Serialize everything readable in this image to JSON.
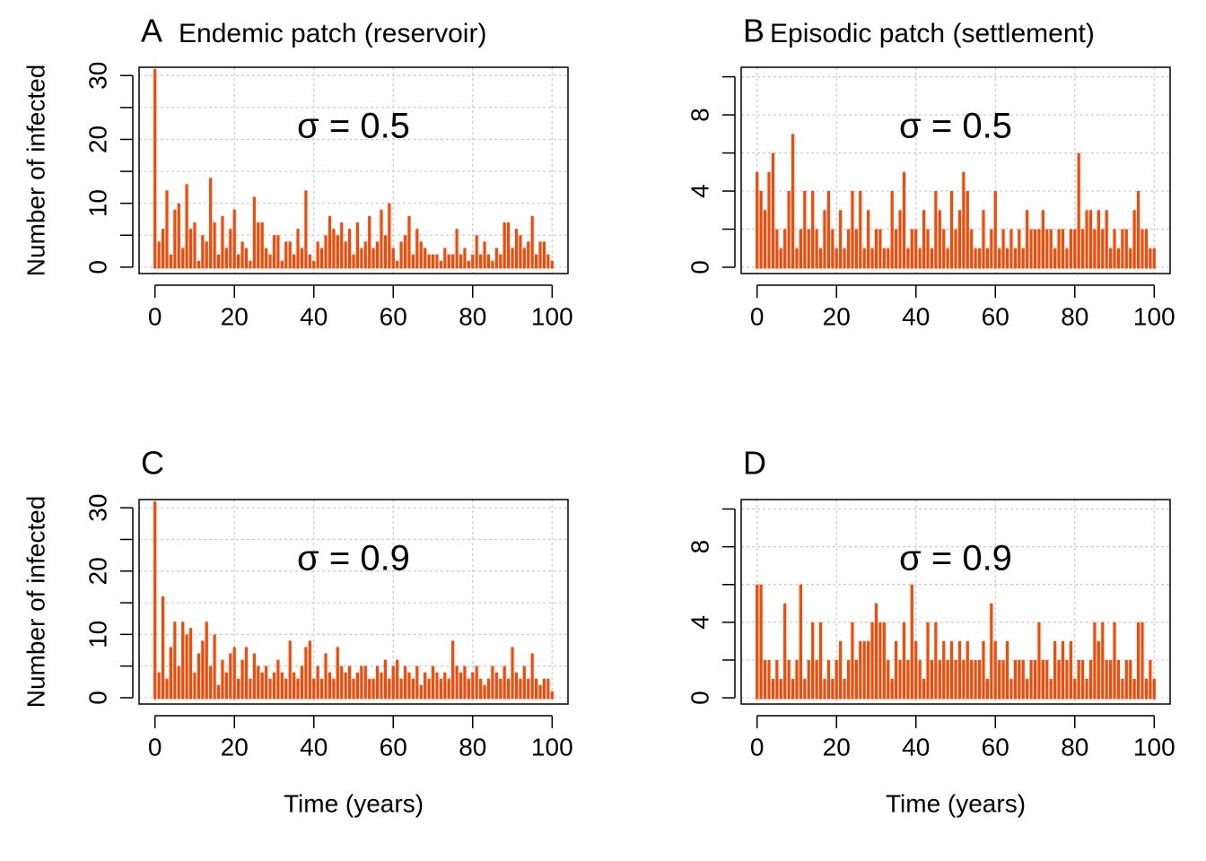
{
  "chart_data": [
    {
      "type": "spike",
      "label": "A",
      "title": "Endemic patch (reservoir)",
      "annotation": "σ = 0.5",
      "y_label": "Number of infected",
      "x": [
        0,
        1,
        2,
        3,
        4,
        5,
        6,
        7,
        8,
        9,
        10,
        11,
        12,
        13,
        14,
        15,
        16,
        17,
        18,
        19,
        20,
        21,
        22,
        23,
        24,
        25,
        26,
        27,
        28,
        29,
        30,
        31,
        32,
        33,
        34,
        35,
        36,
        37,
        38,
        39,
        40,
        41,
        42,
        43,
        44,
        45,
        46,
        47,
        48,
        49,
        50,
        51,
        52,
        53,
        54,
        55,
        56,
        57,
        58,
        59,
        60,
        61,
        62,
        63,
        64,
        65,
        66,
        67,
        68,
        69,
        70,
        71,
        72,
        73,
        74,
        75,
        76,
        77,
        78,
        79,
        80,
        81,
        82,
        83,
        84,
        85,
        86,
        87,
        88,
        89,
        90,
        91,
        92,
        93,
        94,
        95,
        96,
        97,
        98,
        99,
        100
      ],
      "series": [
        {
          "color": "#ff4500",
          "values": [
            31,
            4,
            6,
            12,
            2,
            9,
            10,
            3,
            13,
            6,
            7,
            1,
            5,
            4,
            14,
            7,
            2,
            8,
            3,
            6,
            9,
            2,
            4,
            3,
            1,
            11,
            7,
            7,
            3,
            2,
            5,
            5,
            1,
            4,
            4,
            2,
            6,
            3,
            12,
            2,
            1,
            4,
            3,
            5,
            8,
            6,
            5,
            7,
            4,
            6,
            2,
            7,
            3,
            4,
            8,
            3,
            4,
            9,
            5,
            10,
            3,
            1,
            4,
            5,
            8,
            2,
            6,
            4,
            3,
            2,
            2,
            2,
            1,
            3,
            2,
            2,
            6,
            2,
            3,
            1,
            2,
            5,
            2,
            4,
            2,
            1,
            3,
            2,
            7,
            7,
            3,
            6,
            5,
            3,
            4,
            8,
            2,
            4,
            4,
            2,
            1
          ]
        }
      ],
      "xlim": [
        -4,
        104
      ],
      "ylim": [
        -1,
        31.3
      ],
      "xticks": [
        0,
        20,
        40,
        60,
        80,
        100
      ],
      "yticks": [
        0,
        10,
        20,
        30
      ],
      "yminorticks": [
        5,
        15,
        25
      ],
      "grid": true
    },
    {
      "type": "spike",
      "label": "B",
      "title": "Episodic patch (settlement)",
      "annotation": "σ = 0.5",
      "x": [
        0,
        1,
        2,
        3,
        4,
        5,
        6,
        7,
        8,
        9,
        10,
        11,
        12,
        13,
        14,
        15,
        16,
        17,
        18,
        19,
        20,
        21,
        22,
        23,
        24,
        25,
        26,
        27,
        28,
        29,
        30,
        31,
        32,
        33,
        34,
        35,
        36,
        37,
        38,
        39,
        40,
        41,
        42,
        43,
        44,
        45,
        46,
        47,
        48,
        49,
        50,
        51,
        52,
        53,
        54,
        55,
        56,
        57,
        58,
        59,
        60,
        61,
        62,
        63,
        64,
        65,
        66,
        67,
        68,
        69,
        70,
        71,
        72,
        73,
        74,
        75,
        76,
        77,
        78,
        79,
        80,
        81,
        82,
        83,
        84,
        85,
        86,
        87,
        88,
        89,
        90,
        91,
        92,
        93,
        94,
        95,
        96,
        97,
        98,
        99,
        100
      ],
      "series": [
        {
          "color": "#ff4500",
          "values": [
            5,
            4,
            3,
            5,
            6,
            2,
            1,
            2,
            4,
            7,
            1,
            2,
            4,
            2,
            4,
            2,
            1,
            3,
            4,
            2,
            1,
            3,
            1,
            2,
            4,
            2,
            4,
            1,
            3,
            1,
            2,
            2,
            1,
            1,
            4,
            2,
            3,
            5,
            1,
            2,
            2,
            1,
            3,
            2,
            1,
            4,
            3,
            2,
            1,
            4,
            2,
            3,
            5,
            4,
            2,
            1,
            1,
            3,
            1,
            2,
            4,
            1,
            2,
            1,
            2,
            1,
            2,
            1,
            3,
            2,
            2,
            2,
            3,
            2,
            2,
            1,
            2,
            2,
            1,
            2,
            2,
            6,
            2,
            3,
            3,
            2,
            3,
            2,
            3,
            1,
            2,
            1,
            2,
            2,
            1,
            3,
            4,
            2,
            2,
            1,
            1
          ]
        }
      ],
      "xlim": [
        -4,
        104
      ],
      "ylim": [
        -0.33,
        10.5
      ],
      "xticks": [
        0,
        20,
        40,
        60,
        80,
        100
      ],
      "yticks": [
        0,
        4,
        8
      ],
      "yminorticks": [
        2,
        6,
        10
      ],
      "grid": true
    },
    {
      "type": "spike",
      "label": "C",
      "annotation": "σ = 0.9",
      "y_label": "Number of infected",
      "x_label": "Time (years)",
      "x": [
        0,
        1,
        2,
        3,
        4,
        5,
        6,
        7,
        8,
        9,
        10,
        11,
        12,
        13,
        14,
        15,
        16,
        17,
        18,
        19,
        20,
        21,
        22,
        23,
        24,
        25,
        26,
        27,
        28,
        29,
        30,
        31,
        32,
        33,
        34,
        35,
        36,
        37,
        38,
        39,
        40,
        41,
        42,
        43,
        44,
        45,
        46,
        47,
        48,
        49,
        50,
        51,
        52,
        53,
        54,
        55,
        56,
        57,
        58,
        59,
        60,
        61,
        62,
        63,
        64,
        65,
        66,
        67,
        68,
        69,
        70,
        71,
        72,
        73,
        74,
        75,
        76,
        77,
        78,
        79,
        80,
        81,
        82,
        83,
        84,
        85,
        86,
        87,
        88,
        89,
        90,
        91,
        92,
        93,
        94,
        95,
        96,
        97,
        98,
        99,
        100
      ],
      "series": [
        {
          "color": "#ff4500",
          "values": [
            31,
            4,
            16,
            3,
            8,
            12,
            5,
            12,
            10,
            11,
            4,
            7,
            9,
            12,
            5,
            10,
            2,
            6,
            4,
            7,
            8,
            3,
            6,
            8,
            3,
            7,
            5,
            4,
            5,
            3,
            4,
            6,
            4,
            3,
            9,
            4,
            3,
            5,
            8,
            9,
            3,
            5,
            3,
            7,
            4,
            3,
            8,
            5,
            4,
            5,
            3,
            4,
            5,
            5,
            3,
            3,
            5,
            4,
            6,
            3,
            5,
            6,
            3,
            5,
            4,
            3,
            5,
            2,
            4,
            3,
            5,
            4,
            3,
            4,
            3,
            9,
            5,
            4,
            5,
            3,
            4,
            5,
            3,
            2,
            3,
            5,
            4,
            3,
            5,
            3,
            8,
            4,
            3,
            5,
            3,
            7,
            3,
            2,
            3,
            3,
            1
          ]
        }
      ],
      "xlim": [
        -4,
        104
      ],
      "ylim": [
        -1,
        31.3
      ],
      "xticks": [
        0,
        20,
        40,
        60,
        80,
        100
      ],
      "yticks": [
        0,
        10,
        20,
        30
      ],
      "yminorticks": [
        5,
        15,
        25
      ],
      "grid": true
    },
    {
      "type": "spike",
      "label": "D",
      "annotation": "σ = 0.9",
      "x_label": "Time (years)",
      "x": [
        0,
        1,
        2,
        3,
        4,
        5,
        6,
        7,
        8,
        9,
        10,
        11,
        12,
        13,
        14,
        15,
        16,
        17,
        18,
        19,
        20,
        21,
        22,
        23,
        24,
        25,
        26,
        27,
        28,
        29,
        30,
        31,
        32,
        33,
        34,
        35,
        36,
        37,
        38,
        39,
        40,
        41,
        42,
        43,
        44,
        45,
        46,
        47,
        48,
        49,
        50,
        51,
        52,
        53,
        54,
        55,
        56,
        57,
        58,
        59,
        60,
        61,
        62,
        63,
        64,
        65,
        66,
        67,
        68,
        69,
        70,
        71,
        72,
        73,
        74,
        75,
        76,
        77,
        78,
        79,
        80,
        81,
        82,
        83,
        84,
        85,
        86,
        87,
        88,
        89,
        90,
        91,
        92,
        93,
        94,
        95,
        96,
        97,
        98,
        99,
        100
      ],
      "series": [
        {
          "color": "#ff4500",
          "values": [
            6,
            6,
            2,
            2,
            1,
            2,
            1,
            5,
            2,
            1,
            2,
            6,
            1,
            2,
            4,
            2,
            4,
            1,
            2,
            1,
            2,
            3,
            1,
            2,
            4,
            2,
            3,
            3,
            3,
            4,
            5,
            4,
            4,
            2,
            1,
            3,
            2,
            4,
            2,
            6,
            3,
            2,
            1,
            4,
            2,
            4,
            2,
            3,
            2,
            3,
            2,
            3,
            2,
            3,
            2,
            2,
            2,
            3,
            1,
            5,
            3,
            2,
            2,
            3,
            1,
            2,
            2,
            2,
            1,
            2,
            2,
            4,
            2,
            2,
            1,
            3,
            2,
            3,
            2,
            3,
            1,
            2,
            2,
            1,
            2,
            4,
            3,
            4,
            2,
            2,
            4,
            2,
            1,
            2,
            2,
            1,
            4,
            4,
            1,
            2,
            1
          ]
        }
      ],
      "xlim": [
        -4,
        104
      ],
      "ylim": [
        -0.33,
        10.5
      ],
      "xticks": [
        0,
        20,
        40,
        60,
        80,
        100
      ],
      "yticks": [
        0,
        4,
        8
      ],
      "yminorticks": [
        2,
        6,
        10
      ],
      "grid": true
    }
  ]
}
